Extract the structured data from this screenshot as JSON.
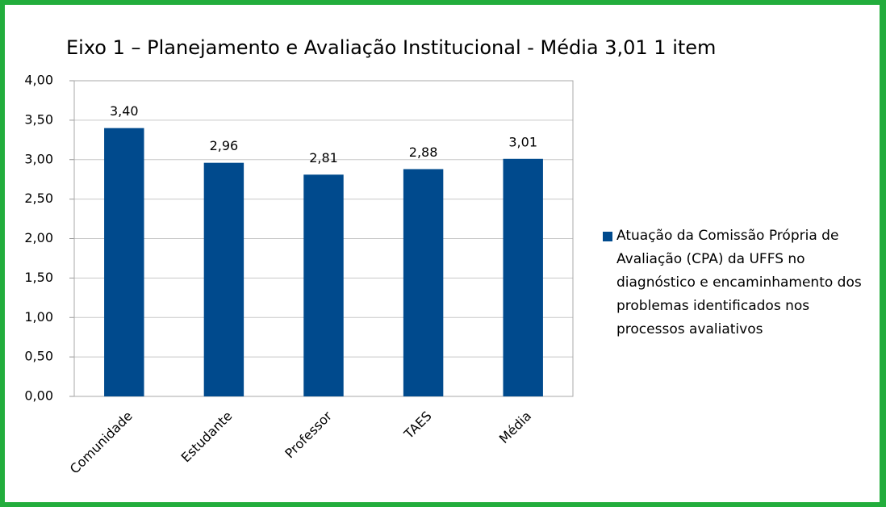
{
  "chart_data": {
    "type": "bar",
    "title": "Eixo 1 – Planejamento e Avaliação Institucional - Média 3,01 1 item",
    "categories": [
      "Comunidade",
      "Estudante",
      "Professor",
      "TAES",
      "Média"
    ],
    "series": [
      {
        "name": "Atuação da Comissão Própria de Avaliação (CPA) da UFFS no diagnóstico e encaminhamento dos problemas identificados nos processos avaliativos",
        "color": "#004a8d",
        "values": [
          3.4,
          2.96,
          2.81,
          2.88,
          3.01
        ],
        "value_labels": [
          "3,40",
          "2,96",
          "2,81",
          "2,88",
          "3,01"
        ]
      }
    ],
    "ylim": [
      0,
      4
    ],
    "yticks": [
      {
        "value": 0,
        "label": "0,00"
      },
      {
        "value": 0.5,
        "label": "0,50"
      },
      {
        "value": 1,
        "label": "1,00"
      },
      {
        "value": 1.5,
        "label": "1,50"
      },
      {
        "value": 2,
        "label": "2,00"
      },
      {
        "value": 2.5,
        "label": "2,50"
      },
      {
        "value": 3,
        "label": "3,00"
      },
      {
        "value": 3.5,
        "label": "3,50"
      },
      {
        "value": 4,
        "label": "4,00"
      }
    ],
    "grid": true,
    "legend": "right"
  }
}
